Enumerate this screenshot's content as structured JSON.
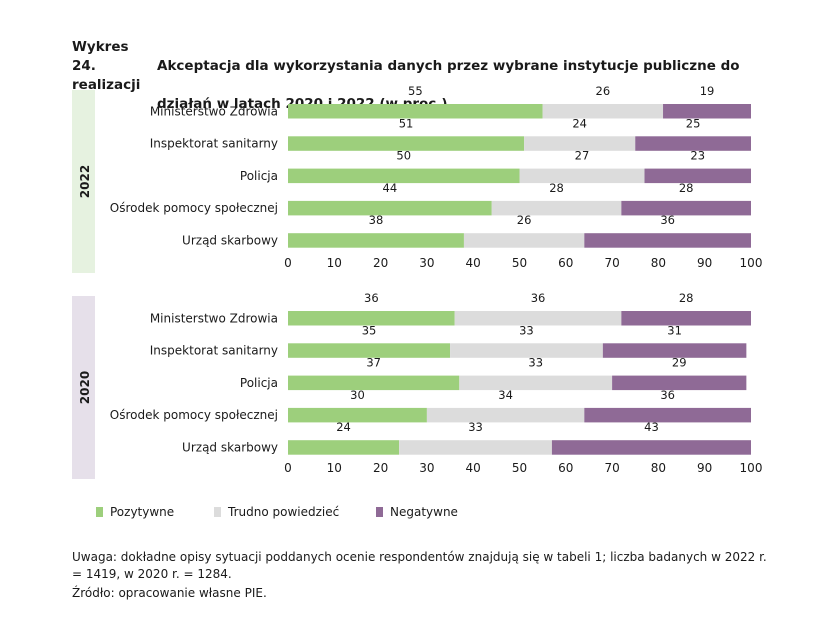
{
  "title": {
    "number": "Wykres 24.",
    "line1": "Akceptacja dla wykorzystania danych przez wybrane instytucje publiczne do realizacji",
    "line2": "działań w latach 2020 i 2022 (w proc.)"
  },
  "note": "Uwaga: dokładne opisy sytuacji poddanych ocenie respondentów znajdują się w tabeli 1; liczba badanych w 2022 r. = 1419, w 2020 r. = 1284.",
  "source": "Źródło: opracowanie własne PIE.",
  "colors": {
    "positive": "#9dcf7c",
    "neutral": "#dcdcdc",
    "negative": "#8f6a96",
    "band_2022": "#e6f2e0",
    "band_2020": "#e6e0ea"
  },
  "chart_data": [
    {
      "type": "bar",
      "orientation": "horizontal",
      "stacked": true,
      "group_label": "2022",
      "categories": [
        "Ministerstwo Zdrowia",
        "Inspektorat sanitarny",
        "Policja",
        "Ośrodek pomocy społecznej",
        "Urząd skarbowy"
      ],
      "series": [
        {
          "name": "Pozytywne",
          "values": [
            55,
            51,
            50,
            44,
            38
          ]
        },
        {
          "name": "Trudno powiedzieć",
          "values": [
            26,
            24,
            27,
            28,
            26
          ]
        },
        {
          "name": "Negatywne",
          "values": [
            19,
            25,
            23,
            28,
            36
          ]
        }
      ],
      "xlim": [
        0,
        100
      ],
      "xticks": [
        0,
        10,
        20,
        30,
        40,
        50,
        60,
        70,
        80,
        90,
        100
      ]
    },
    {
      "type": "bar",
      "orientation": "horizontal",
      "stacked": true,
      "group_label": "2020",
      "categories": [
        "Ministerstwo Zdrowia",
        "Inspektorat sanitarny",
        "Policja",
        "Ośrodek pomocy społecznej",
        "Urząd skarbowy"
      ],
      "series": [
        {
          "name": "Pozytywne",
          "values": [
            36,
            35,
            37,
            30,
            24
          ]
        },
        {
          "name": "Trudno powiedzieć",
          "values": [
            36,
            33,
            33,
            34,
            33
          ]
        },
        {
          "name": "Negatywne",
          "values": [
            28,
            31,
            29,
            36,
            43
          ]
        }
      ],
      "xlim": [
        0,
        100
      ],
      "xticks": [
        0,
        10,
        20,
        30,
        40,
        50,
        60,
        70,
        80,
        90,
        100
      ]
    }
  ],
  "legend": {
    "placement": "bottom-left",
    "items": [
      "Pozytywne",
      "Trudno powiedzieć",
      "Negatywne"
    ]
  }
}
